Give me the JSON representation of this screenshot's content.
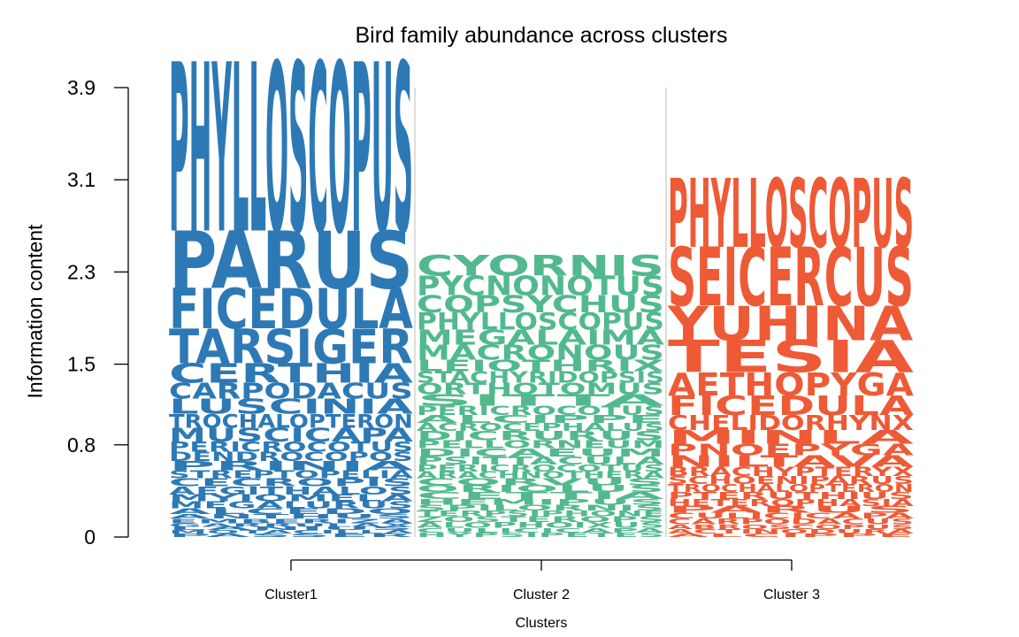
{
  "chart_data": {
    "type": "sequence-logo",
    "title": "Bird family abundance across clusters",
    "xlabel": "Clusters",
    "ylabel": "Information content",
    "yticks": [
      "0",
      "0.8",
      "1.5",
      "2.3",
      "3.1",
      "3.9"
    ],
    "ylim": [
      0,
      3.9
    ],
    "columns": [
      {
        "name": "Cluster1",
        "color": "#2d79b5",
        "words": [
          {
            "label": "PHYLLOSCOPUS",
            "value": 1.47
          },
          {
            "label": "PARUS",
            "value": 0.5
          },
          {
            "label": "FICEDULA",
            "value": 0.35
          },
          {
            "label": "TARSIGER",
            "value": 0.3
          },
          {
            "label": "CERTHIA",
            "value": 0.17
          },
          {
            "label": "CARPODACUS",
            "value": 0.14
          },
          {
            "label": "LUSCINIA",
            "value": 0.13
          },
          {
            "label": "TROCHALOPTERON",
            "value": 0.12
          },
          {
            "label": "MUSCICAPA",
            "value": 0.12
          },
          {
            "label": "PERICROCOTUS",
            "value": 0.09
          },
          {
            "label": "DENDROCOPOS",
            "value": 0.08
          },
          {
            "label": "PRINIA",
            "value": 0.08
          },
          {
            "label": "STREPTOPELIA",
            "value": 0.07
          },
          {
            "label": "CECROPIS",
            "value": 0.07
          },
          {
            "label": "AEGITHALOS",
            "value": 0.07
          },
          {
            "label": "MYIOMELA",
            "value": 0.06
          },
          {
            "label": "MEGALURUS",
            "value": 0.06
          },
          {
            "label": "ALCEDO",
            "value": 0.05
          },
          {
            "label": "ANTHUS",
            "value": 0.04
          },
          {
            "label": "EMBERIZA",
            "value": 0.04
          },
          {
            "label": "GARRULAX",
            "value": 0.03
          },
          {
            "label": "LANIUS",
            "value": 0.03
          },
          {
            "label": "MOTACILLA",
            "value": 0.03
          },
          {
            "label": "PASSER",
            "value": 0.03
          }
        ]
      },
      {
        "name": "Cluster 2",
        "color": "#52b98e",
        "words": [
          {
            "label": "CYORNIS",
            "value": 0.18
          },
          {
            "label": "PYCNONOTUS",
            "value": 0.17
          },
          {
            "label": "COPSYCHUS",
            "value": 0.15
          },
          {
            "label": "PHYLLOSCOPUS",
            "value": 0.15
          },
          {
            "label": "MEGALAIMA",
            "value": 0.13
          },
          {
            "label": "MACRONOUS",
            "value": 0.13
          },
          {
            "label": "LEIOTHRIX",
            "value": 0.1
          },
          {
            "label": "STACHYRIDOPSIS",
            "value": 0.1
          },
          {
            "label": "ORTHOTOMUS",
            "value": 0.1
          },
          {
            "label": "SITTA",
            "value": 0.1
          },
          {
            "label": "PERICROCOTUS",
            "value": 0.08
          },
          {
            "label": "ALCIPPE",
            "value": 0.07
          },
          {
            "label": "ACROCEPHALUS",
            "value": 0.07
          },
          {
            "label": "DICRURUS",
            "value": 0.08
          },
          {
            "label": "PELLORNEUM",
            "value": 0.07
          },
          {
            "label": "DICAEUM",
            "value": 0.07
          },
          {
            "label": "PSITTACULA",
            "value": 0.07
          },
          {
            "label": "PERICROCOTUS",
            "value": 0.06
          },
          {
            "label": "ARACHNOTHERA",
            "value": 0.06
          },
          {
            "label": "CORVUS",
            "value": 0.06
          },
          {
            "label": "ORIOLUS",
            "value": 0.06
          },
          {
            "label": "CETTIA",
            "value": 0.06
          },
          {
            "label": "HEMIPUS",
            "value": 0.05
          },
          {
            "label": "SPILORNIS",
            "value": 0.05
          },
          {
            "label": "TERPSIPHONE",
            "value": 0.05
          },
          {
            "label": "ZOSTEROPS",
            "value": 0.05
          },
          {
            "label": "ALOPHOIXUS",
            "value": 0.05
          },
          {
            "label": "CULICICAPA",
            "value": 0.04
          },
          {
            "label": "HYPSIPETES",
            "value": 0.04
          }
        ]
      },
      {
        "name": "Cluster 3",
        "color": "#ee5a36",
        "words": [
          {
            "label": "PHYLLOSCOPUS",
            "value": 0.6
          },
          {
            "label": "SEICERCUS",
            "value": 0.51
          },
          {
            "label": "YUHINA",
            "value": 0.3
          },
          {
            "label": "TESIA",
            "value": 0.28
          },
          {
            "label": "AETHOPYGA",
            "value": 0.2
          },
          {
            "label": "FICEDULA",
            "value": 0.17
          },
          {
            "label": "CHELIDORHYNX",
            "value": 0.13
          },
          {
            "label": "MINLA",
            "value": 0.12
          },
          {
            "label": "PNOEPYGA",
            "value": 0.1
          },
          {
            "label": "NILTAVA",
            "value": 0.1
          },
          {
            "label": "BRACHYPTERYX",
            "value": 0.08
          },
          {
            "label": "SCHOENIPARUS",
            "value": 0.07
          },
          {
            "label": "TROCHALOPTERON",
            "value": 0.07
          },
          {
            "label": "PTERUTHIUS",
            "value": 0.06
          },
          {
            "label": "HETEROPHASIA",
            "value": 0.06
          },
          {
            "label": "PARUS",
            "value": 0.06
          },
          {
            "label": "CULICICAPA",
            "value": 0.05
          },
          {
            "label": "CARPODACUS",
            "value": 0.05
          },
          {
            "label": "ABROSCOPUS",
            "value": 0.04
          },
          {
            "label": "ACTINODURA",
            "value": 0.04
          },
          {
            "label": "ALCIPPE",
            "value": 0.03
          }
        ]
      }
    ]
  }
}
